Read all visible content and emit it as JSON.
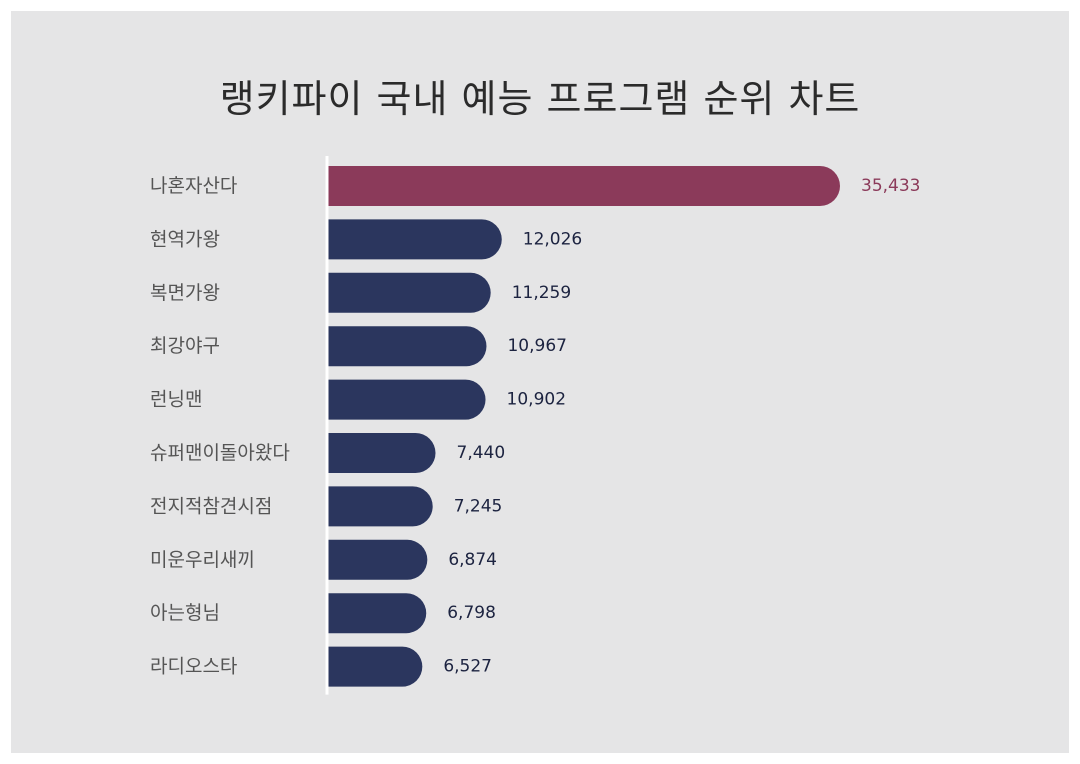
{
  "title": "랭키파이 국내 예능 프로그램 순위 차트",
  "colors": {
    "background": "#e5e5e6",
    "highlight": "#8b3a5a",
    "bar": "#2b365e",
    "axis": "#ffffff",
    "category_text": "#555555"
  },
  "chart_data": {
    "type": "bar",
    "orientation": "horizontal",
    "title": "랭키파이 국내 예능 프로그램 순위 차트",
    "categories": [
      "나혼자산다",
      "현역가왕",
      "복면가왕",
      "최강야구",
      "런닝맨",
      "슈퍼맨이돌아왔다",
      "전지적참견시점",
      "미운우리새끼",
      "아는형님",
      "라디오스타"
    ],
    "values": [
      35433,
      12026,
      11259,
      10967,
      10902,
      7440,
      7245,
      6874,
      6798,
      6527
    ],
    "value_labels": [
      "35,433",
      "12,026",
      "11,259",
      "10,967",
      "10,902",
      "7,440",
      "7,245",
      "6,874",
      "6,798",
      "6,527"
    ],
    "highlight_index": 0,
    "xlim": [
      0,
      35433
    ],
    "grid": false,
    "legend": "none"
  }
}
